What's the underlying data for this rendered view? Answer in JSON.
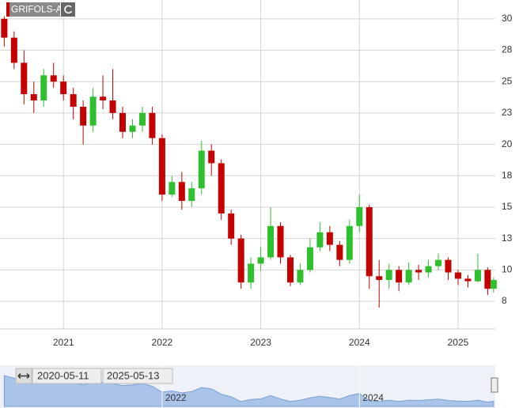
{
  "chart_data": {
    "type": "candlestick",
    "title": "GRIFOLS-A",
    "up_color": "#2fbf2f",
    "down_color": "#c40000",
    "grid": true,
    "xlim": [
      2020.357,
      2025.377
    ],
    "xticks": [
      2021,
      2022,
      2023,
      2024,
      2025
    ],
    "ylim": [
      5.3,
      31.5
    ],
    "yticks": [
      {
        "value": 7.5,
        "label": "8"
      },
      10,
      {
        "value": 12.5,
        "label": "13"
      },
      15,
      {
        "value": 17.5,
        "label": "18"
      },
      20,
      {
        "value": 22.5,
        "label": "23"
      },
      25,
      {
        "value": 27.5,
        "label": "28"
      },
      30
    ],
    "x": [
      2020.4,
      2020.5,
      2020.6,
      2020.7,
      2020.8,
      2020.9,
      2021.0,
      2021.1,
      2021.2,
      2021.3,
      2021.4,
      2021.5,
      2021.6,
      2021.7,
      2021.8,
      2021.9,
      2022.0,
      2022.1,
      2022.2,
      2022.3,
      2022.4,
      2022.5,
      2022.6,
      2022.7,
      2022.8,
      2022.9,
      2023.0,
      2023.1,
      2023.2,
      2023.3,
      2023.4,
      2023.5,
      2023.6,
      2023.7,
      2023.8,
      2023.9,
      2024.0,
      2024.1,
      2024.2,
      2024.3,
      2024.4,
      2024.5,
      2024.6,
      2024.7,
      2024.8,
      2024.9,
      2025.0,
      2025.1,
      2025.2,
      2025.3,
      2025.36
    ],
    "open": [
      30,
      28.5,
      26.5,
      24,
      23.5,
      25.5,
      25,
      24,
      23,
      21.5,
      23.8,
      23.5,
      22.5,
      21,
      21.5,
      22.5,
      20.5,
      16,
      17,
      15.5,
      16.5,
      19.5,
      18.5,
      14.5,
      12.5,
      9,
      10.5,
      11,
      13.5,
      11,
      9,
      10,
      11.8,
      13,
      12,
      10.8,
      13.5,
      15,
      9.5,
      9.2,
      10,
      9,
      10,
      9.8,
      10.3,
      10.8,
      9.8,
      9.3,
      9.1,
      10,
      8.5
    ],
    "high": [
      30.2,
      29,
      27.5,
      25,
      26,
      26.5,
      25.5,
      24.5,
      23.5,
      24.5,
      25.5,
      26,
      23,
      22,
      23,
      23,
      20.8,
      17.5,
      17.8,
      17,
      20.3,
      20,
      18.8,
      14.8,
      12.8,
      11,
      11.8,
      15,
      13.8,
      11.2,
      10.5,
      12.5,
      13.8,
      13.5,
      12.3,
      14,
      16,
      15.2,
      10.8,
      10.5,
      10.3,
      10.6,
      10.4,
      10.8,
      11.3,
      11,
      10,
      9.6,
      11.3,
      10.2,
      9.4
    ],
    "low": [
      27.8,
      26,
      23.2,
      22.5,
      23,
      24.5,
      23.5,
      22,
      20,
      21,
      22.8,
      22,
      20.5,
      20.5,
      21,
      20,
      15.5,
      15.8,
      14.8,
      15,
      16,
      17.5,
      14,
      12,
      8.5,
      8.5,
      10,
      10.8,
      10.5,
      8.7,
      8.8,
      9.8,
      11.5,
      11.5,
      10.3,
      10.5,
      13,
      8.5,
      7,
      8.5,
      8.3,
      8.8,
      9.2,
      9.4,
      10,
      9.2,
      8.8,
      8.6,
      9,
      8,
      8.2
    ],
    "close": [
      28.5,
      26.5,
      24,
      23.5,
      25.5,
      25,
      24,
      23,
      21.5,
      23.8,
      23.5,
      22.5,
      21,
      21.5,
      22.5,
      20.5,
      16,
      17,
      15.5,
      16.5,
      19.5,
      18.5,
      14.5,
      12.5,
      9,
      10.5,
      11,
      13.5,
      11,
      9,
      10,
      11.8,
      13,
      12,
      10.8,
      13.5,
      15,
      9.5,
      9.2,
      10,
      9,
      10,
      9.8,
      10.3,
      10.8,
      9.8,
      9.3,
      9.1,
      10,
      8.5,
      9.2
    ],
    "navigator": {
      "from": "2020-05-11",
      "to": "2025-05-13",
      "xticks": [
        2022,
        2024
      ],
      "color": "#a9c4e8"
    }
  }
}
